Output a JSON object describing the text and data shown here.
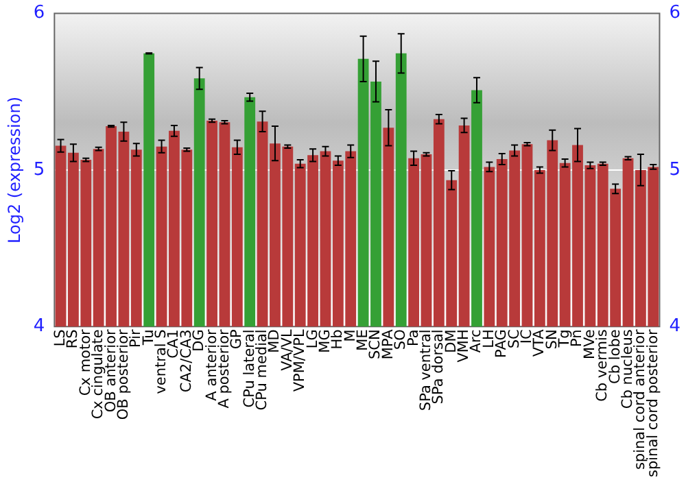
{
  "chart_data": {
    "type": "bar",
    "ylabel": "Log2 (expression)",
    "categories": [
      "LS",
      "RS",
      "Cx motor",
      "Cx cingulate",
      "OB anterior",
      "OB posterior",
      "Pir",
      "Tu",
      "ventral S",
      "CA1",
      "CA2/CA3",
      "DG",
      "A anterior",
      "A posterior",
      "GP",
      "CPu lateral",
      "CPu medial",
      "MD",
      "VA/VL",
      "VPM/VPL",
      "LG",
      "MG",
      "Hb",
      "M",
      "ME",
      "SCN",
      "MPA",
      "SO",
      "Pa",
      "SPa ventral",
      "SPa dorsal",
      "DM",
      "VMH",
      "Arc",
      "LH",
      "PAG",
      "SC",
      "IC",
      "VTA",
      "SN",
      "Tg",
      "Pn",
      "MVe",
      "Cb vermis",
      "Cb lobe",
      "Cb nucleus",
      "spinal cord anterior",
      "spinal cord posterior"
    ],
    "values": [
      5.155,
      5.11,
      5.065,
      5.135,
      5.28,
      5.245,
      5.13,
      5.745,
      5.15,
      5.25,
      5.13,
      5.585,
      5.315,
      5.305,
      5.145,
      5.465,
      5.31,
      5.17,
      5.15,
      5.04,
      5.095,
      5.12,
      5.06,
      5.12,
      5.71,
      5.565,
      5.27,
      5.745,
      5.075,
      5.1,
      5.325,
      4.935,
      5.285,
      5.51,
      5.02,
      5.07,
      5.125,
      5.165,
      5.0,
      5.19,
      5.045,
      5.16,
      5.03,
      5.04,
      4.88,
      5.075,
      5.0,
      5.02
    ],
    "errors": [
      0.04,
      0.055,
      0.01,
      0.01,
      0.005,
      0.06,
      0.04,
      0.003,
      0.04,
      0.035,
      0.01,
      0.07,
      0.01,
      0.01,
      0.045,
      0.025,
      0.065,
      0.11,
      0.01,
      0.025,
      0.04,
      0.03,
      0.03,
      0.04,
      0.145,
      0.13,
      0.115,
      0.125,
      0.045,
      0.01,
      0.03,
      0.06,
      0.045,
      0.08,
      0.03,
      0.035,
      0.035,
      0.01,
      0.02,
      0.065,
      0.025,
      0.105,
      0.02,
      0.01,
      0.03,
      0.01,
      0.1,
      0.015
    ],
    "colors": [
      "#b83a3a",
      "#b83a3a",
      "#b83a3a",
      "#b83a3a",
      "#b83a3a",
      "#b83a3a",
      "#b83a3a",
      "#35a035",
      "#b83a3a",
      "#b83a3a",
      "#b83a3a",
      "#35a035",
      "#b83a3a",
      "#b83a3a",
      "#b83a3a",
      "#35a035",
      "#b83a3a",
      "#b83a3a",
      "#b83a3a",
      "#b83a3a",
      "#b83a3a",
      "#b83a3a",
      "#b83a3a",
      "#b83a3a",
      "#35a035",
      "#35a035",
      "#b83a3a",
      "#35a035",
      "#b83a3a",
      "#b83a3a",
      "#b83a3a",
      "#b83a3a",
      "#b83a3a",
      "#35a035",
      "#b83a3a",
      "#b83a3a",
      "#b83a3a",
      "#b83a3a",
      "#b83a3a",
      "#b83a3a",
      "#b83a3a",
      "#b83a3a",
      "#b83a3a",
      "#b83a3a",
      "#b83a3a",
      "#b83a3a",
      "#b83a3a",
      "#b83a3a"
    ],
    "ylim": [
      4,
      6
    ],
    "yticks": [
      4,
      5,
      6
    ],
    "y2lim": [
      4,
      6
    ],
    "y2ticks": [
      4,
      5,
      6
    ],
    "grid": "y",
    "legend": false
  }
}
